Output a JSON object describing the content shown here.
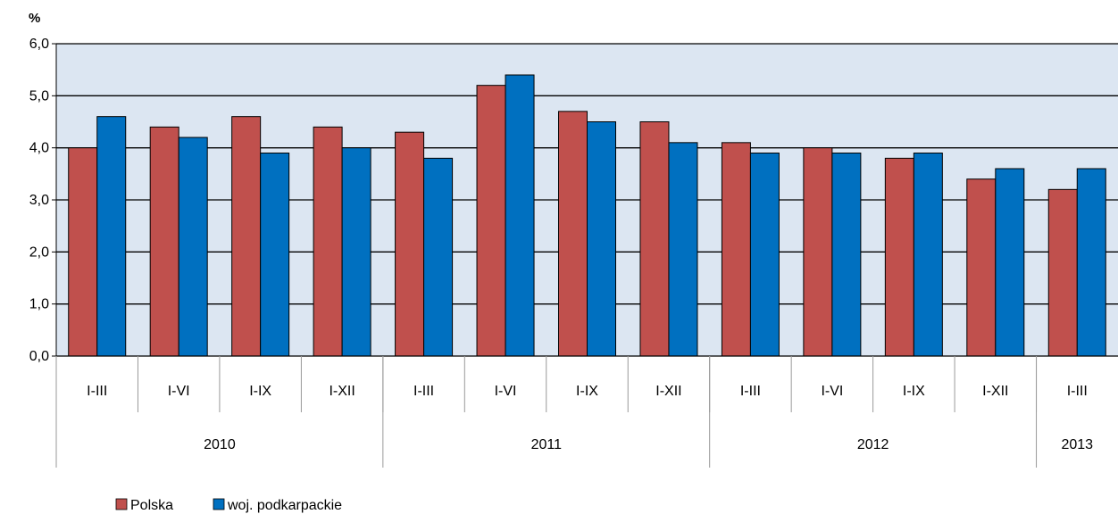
{
  "chart_data": {
    "type": "bar",
    "ylabel": "%",
    "ylim": [
      0,
      6
    ],
    "yticks": [
      "0,0",
      "1,0",
      "2,0",
      "3,0",
      "4,0",
      "5,0",
      "6,0"
    ],
    "categories": [
      "I-III",
      "I-VI",
      "I-IX",
      "I-XII",
      "I-III",
      "I-VI",
      "I-IX",
      "I-XII",
      "I-III",
      "I-VI",
      "I-IX",
      "I-XII",
      "I-III"
    ],
    "groups": [
      {
        "label": "2010",
        "count": 4
      },
      {
        "label": "2011",
        "count": 4
      },
      {
        "label": "2012",
        "count": 4
      },
      {
        "label": "2013",
        "count": 1
      }
    ],
    "series": [
      {
        "name": "Polska",
        "color": "#c0504d",
        "values": [
          4.0,
          4.4,
          4.6,
          4.4,
          4.3,
          5.2,
          4.7,
          4.5,
          4.1,
          4.0,
          3.8,
          3.4,
          3.2
        ]
      },
      {
        "name": "woj. podkarpackie",
        "color": "#0070c0",
        "values": [
          4.6,
          4.2,
          3.9,
          4.0,
          3.8,
          5.4,
          4.5,
          4.1,
          3.9,
          3.9,
          3.9,
          3.6,
          3.6
        ]
      }
    ],
    "grid": true,
    "plot_background": "#dce6f2",
    "legend_position": "bottom-left"
  }
}
